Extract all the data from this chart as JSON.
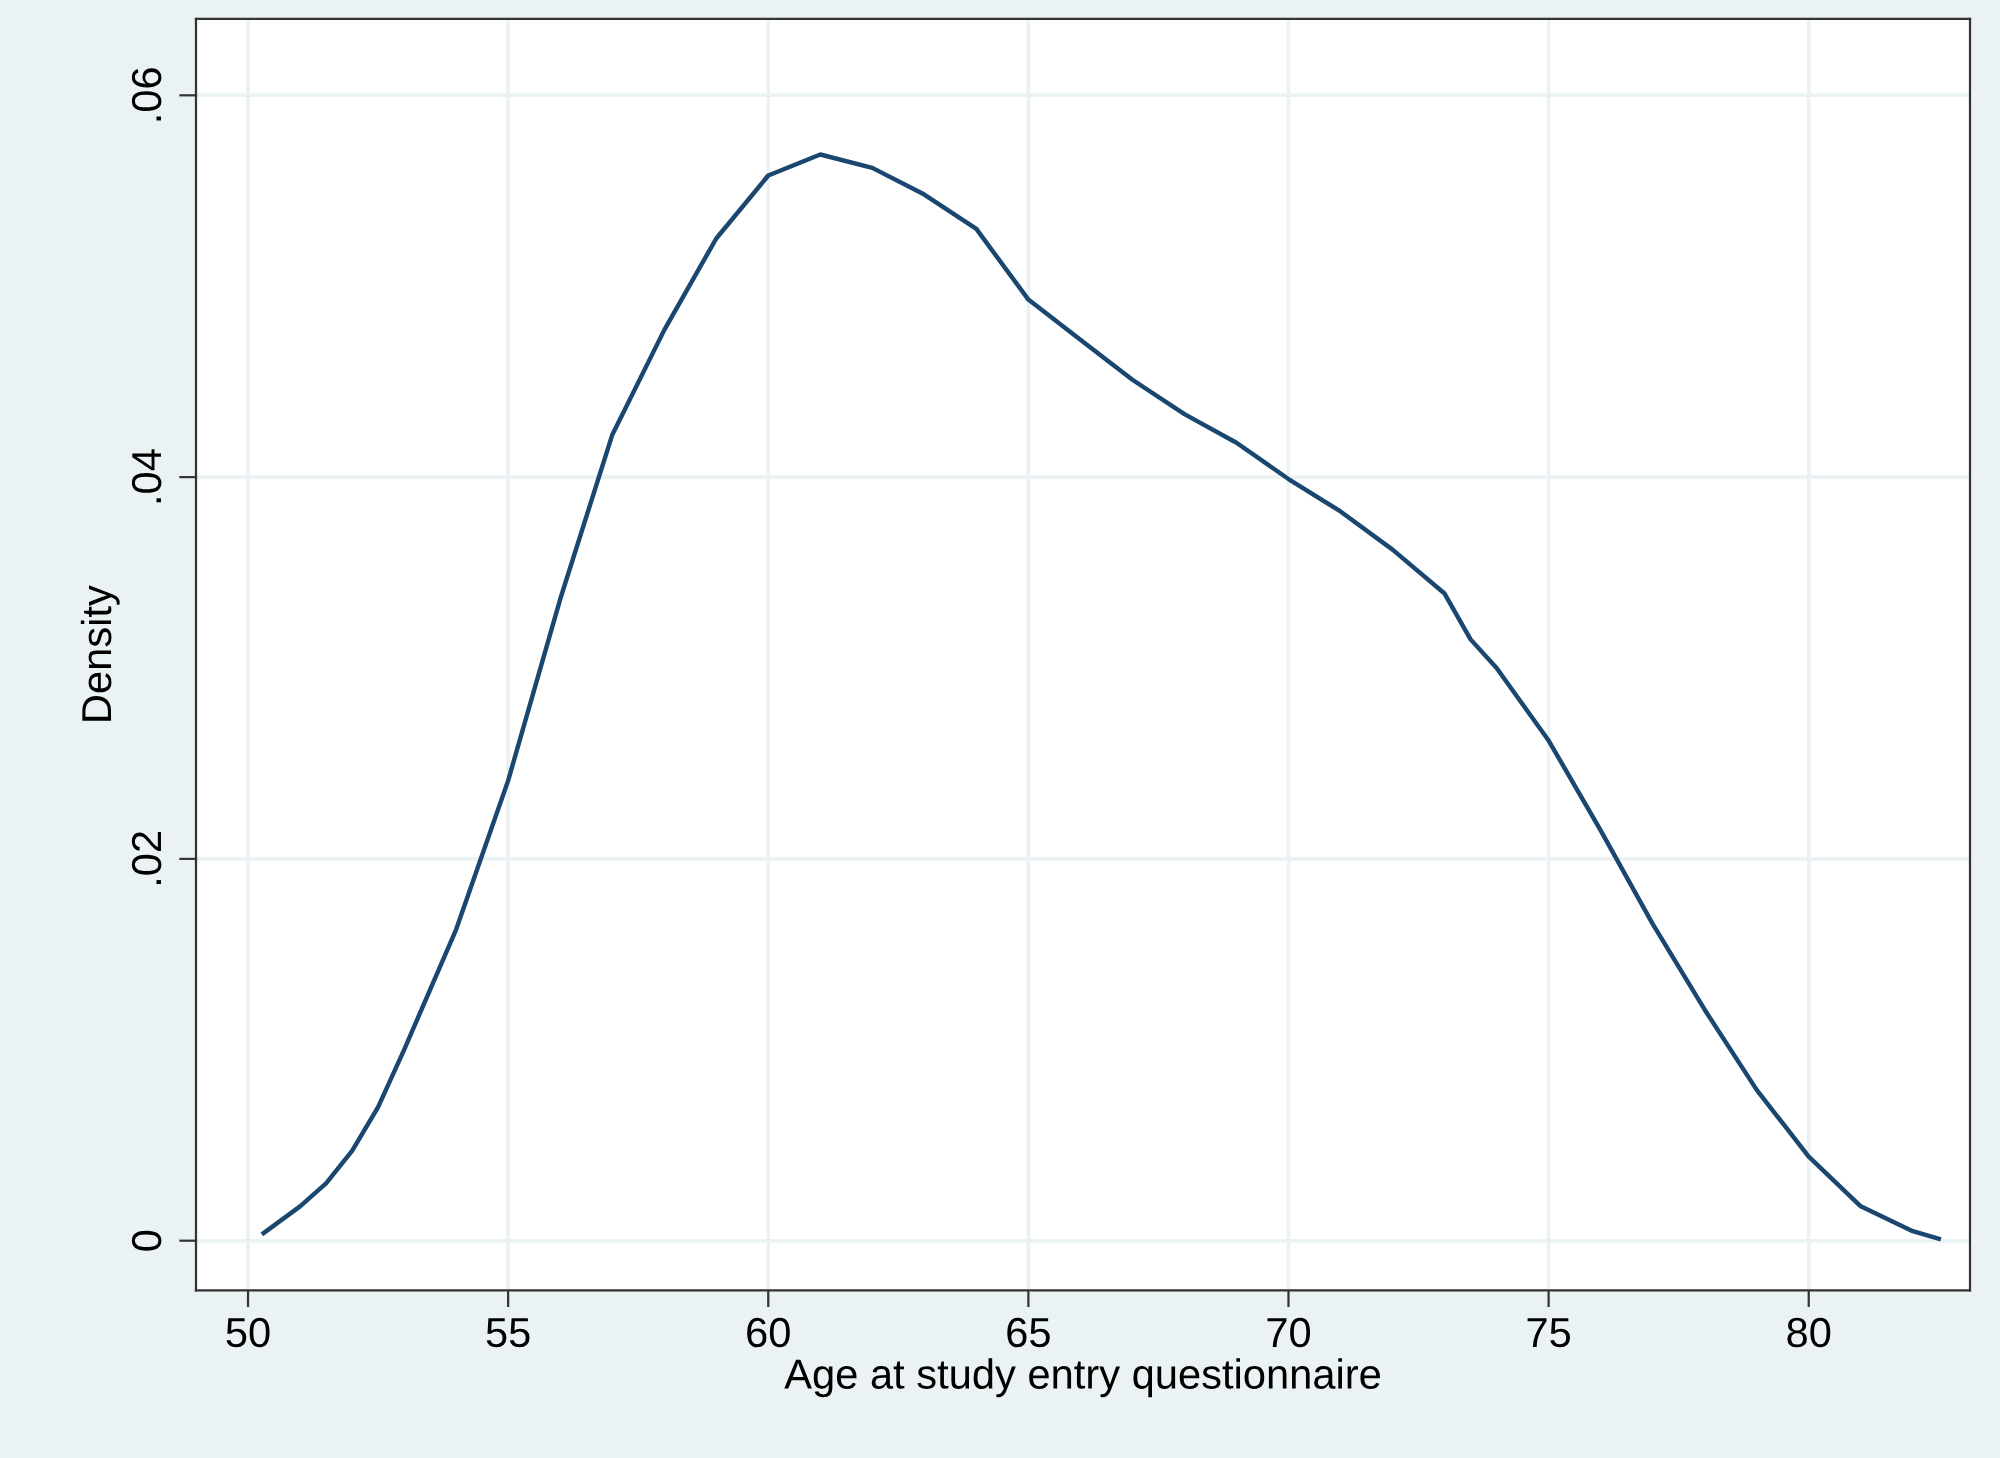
{
  "chart_data": {
    "type": "line",
    "xlabel": "Age at study entry questionnaire",
    "ylabel": "Density",
    "x": [
      50.3,
      51,
      51.5,
      52,
      52.5,
      53,
      54,
      55,
      56,
      57,
      58,
      59,
      60,
      61,
      62,
      63,
      64,
      65,
      66,
      67,
      68,
      69,
      70,
      71,
      72,
      73,
      73.5,
      74,
      75,
      76,
      77,
      78,
      79,
      80,
      81,
      82,
      82.5
    ],
    "series": [
      {
        "color": "#1a476f",
        "values": [
          0.0004,
          0.0018,
          0.003,
          0.0047,
          0.007,
          0.01,
          0.0163,
          0.0241,
          0.0336,
          0.0422,
          0.0477,
          0.0525,
          0.0558,
          0.0569,
          0.0562,
          0.0548,
          0.053,
          0.0493,
          0.0472,
          0.0451,
          0.0433,
          0.0418,
          0.0399,
          0.0382,
          0.0362,
          0.0339,
          0.0315,
          0.03,
          0.0262,
          0.0215,
          0.0166,
          0.0121,
          0.0079,
          0.0044,
          0.0018,
          0.0005,
          0.0001
        ]
      }
    ],
    "xlim": [
      49.0,
      83.1
    ],
    "ylim": [
      -0.0026,
      0.064
    ],
    "xticks": [
      50,
      55,
      60,
      65,
      70,
      75,
      80
    ],
    "yticks": [
      {
        "value": 0,
        "label": "0"
      },
      {
        "value": 0.02,
        "label": ".02"
      },
      {
        "value": 0.04,
        "label": ".04"
      },
      {
        "value": 0.06,
        "label": ".06"
      }
    ],
    "grid": true,
    "marker": "none",
    "line_style": "solid"
  }
}
